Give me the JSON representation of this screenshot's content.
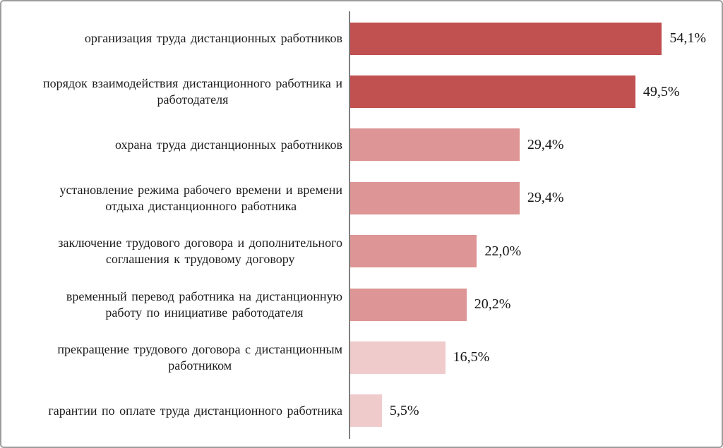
{
  "chart_data": {
    "type": "bar",
    "orientation": "horizontal",
    "title": "",
    "xlabel": "",
    "ylabel": "",
    "xlim": [
      0,
      63
    ],
    "grid": false,
    "legend": "none",
    "decimal_separator": ",",
    "axis_color": "#7f7f7f",
    "categories": [
      "организация труда дистанционных работников",
      "порядок взаимодействия дистанционного работника и\nработодателя",
      "охрана труда дистанционных работников",
      "установление режима рабочего времени и времени\nотдыха дистанционного работника",
      "заключение трудового договора и дополнительного\nсоглашения к трудовому договору",
      "временный перевод работника на дистанционную\nработу по инициативе работодателя",
      "прекращение трудового договора с дистанционным\nработником",
      "гарантии по оплате труда дистанционного работника"
    ],
    "values": [
      54.1,
      49.5,
      29.4,
      29.4,
      22.0,
      20.2,
      16.5,
      5.5
    ],
    "value_labels": [
      "54,1%",
      "49,5%",
      "29,4%",
      "29,4%",
      "22,0%",
      "20,2%",
      "16,5%",
      "5,5%"
    ],
    "bar_colors": [
      "#c15050",
      "#c15050",
      "#dd9695",
      "#dd9695",
      "#dd9695",
      "#dd9695",
      "#efcccb",
      "#efcccb"
    ],
    "color_legend": {
      "dark_red": "#c15050",
      "medium_pink": "#dd9695",
      "light_pink": "#efcccb"
    }
  }
}
